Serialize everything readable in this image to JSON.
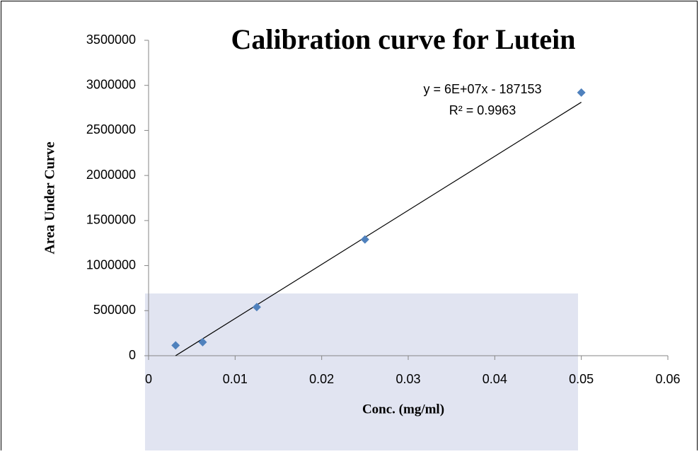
{
  "chart_data": {
    "type": "scatter",
    "title": "Calibration curve for Lutein",
    "x_label": "Conc. (mg/ml)",
    "y_label": "Area Under Curve",
    "equation": "y = 6E+07x - 187153",
    "r_squared": "R² = 0.9963",
    "series": [
      {
        "color": "#4f81bd",
        "x": [
          0.003125,
          0.00625,
          0.0125,
          0.025,
          0.05
        ],
        "values": [
          115000,
          150000,
          540000,
          1290000,
          2920000
        ]
      }
    ],
    "trendline": {
      "color": "#000000",
      "x": [
        0.00312,
        0.05
      ],
      "values": [
        0,
        2812847
      ]
    },
    "xlim": [
      0,
      0.06
    ],
    "xticks": [
      0,
      0.01,
      0.02,
      0.03,
      0.04,
      0.05,
      0.06
    ],
    "ylim": [
      0,
      3500000
    ],
    "yticks": [
      0,
      500000,
      1000000,
      1500000,
      2000000,
      2500000,
      3000000,
      3500000
    ],
    "grid": false
  }
}
